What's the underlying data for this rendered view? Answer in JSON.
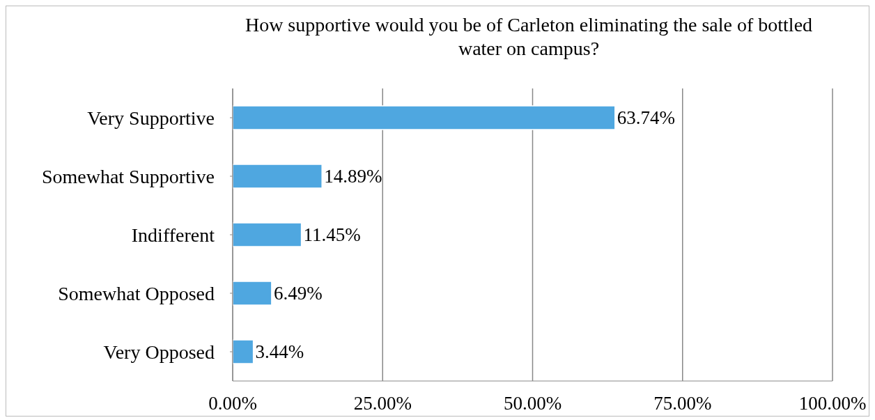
{
  "chart_data": {
    "type": "bar",
    "orientation": "horizontal",
    "title": "How supportive would you be of Carleton eliminating the sale of bottled water on campus?",
    "categories": [
      "Very Supportive",
      "Somewhat Supportive",
      "Indifferent",
      "Somewhat Opposed",
      "Very Opposed"
    ],
    "values": [
      63.74,
      14.89,
      11.45,
      6.49,
      3.44
    ],
    "value_labels": [
      "63.74%",
      "14.89%",
      "11.45%",
      "6.49%",
      "3.44%"
    ],
    "color": "#4fa7e0",
    "xlim": [
      0,
      100
    ],
    "xticks": [
      {
        "value": 0,
        "label": "0.00%"
      },
      {
        "value": 25,
        "label": "25.00%"
      },
      {
        "value": 50,
        "label": "50.00%"
      },
      {
        "value": 75,
        "label": "75.00%"
      },
      {
        "value": 100,
        "label": "100.00%"
      }
    ],
    "grid": "x"
  }
}
